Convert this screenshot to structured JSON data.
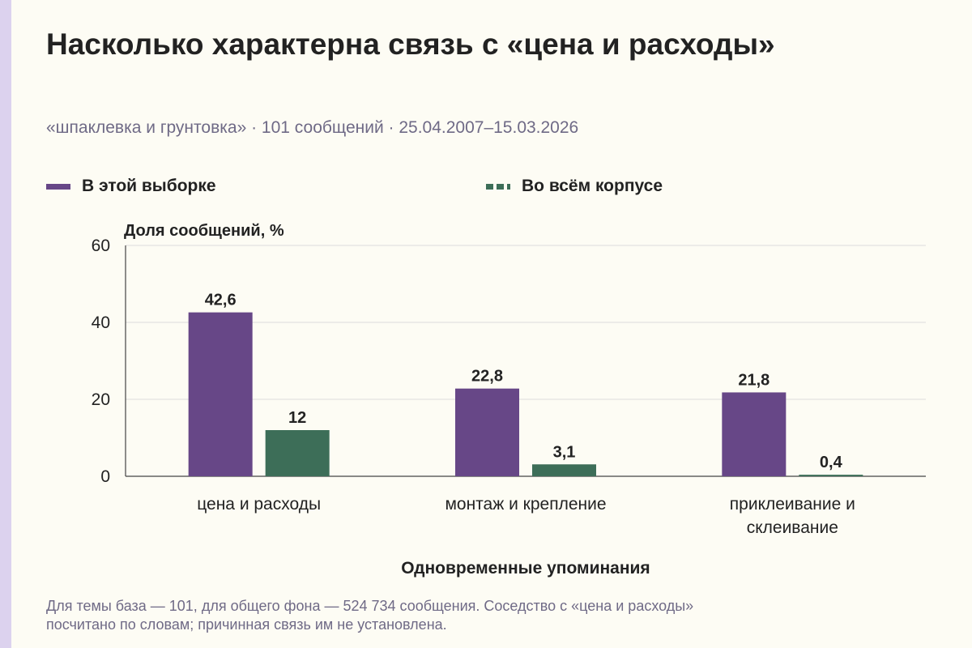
{
  "header": {
    "title": "Насколько характерна связь с «цена и расходы»",
    "subtitle": "«шпаклевка и грунтовка» · 101 сообщений · 25.04.2007–15.03.2026"
  },
  "legend": [
    {
      "label": "В этой выборке",
      "color": "#674787",
      "style": "solid"
    },
    {
      "label": "Во всём корпусе",
      "color": "#3d6e58",
      "style": "dashed"
    }
  ],
  "footer": {
    "note_line1": "Для темы база — 101, для общего фона — 524 734 сообщения. Соседство с «цена и расходы»",
    "note_line2": "посчитано по словам; причинная связь им не установлена."
  },
  "chart_data": {
    "type": "bar",
    "ylabel": "Доля сообщений, %",
    "xlabel": "Одновременные упоминания",
    "ylim": [
      0,
      60
    ],
    "yticks": [
      0,
      20,
      40,
      60
    ],
    "grid": true,
    "legend_position": "top-left",
    "categories": [
      [
        "цена и расходы"
      ],
      [
        "монтаж и крепление"
      ],
      [
        "приклеивание и",
        "склеивание"
      ]
    ],
    "series": [
      {
        "name": "В этой выборке",
        "color": "#674787",
        "values": [
          42.6,
          22.8,
          21.8
        ],
        "labels": [
          "42,6",
          "22,8",
          "21,8"
        ]
      },
      {
        "name": "Во всём корпусе",
        "color": "#3d6e58",
        "values": [
          12,
          3.1,
          0.4
        ],
        "labels": [
          "12",
          "3,1",
          "0,4"
        ]
      }
    ]
  }
}
